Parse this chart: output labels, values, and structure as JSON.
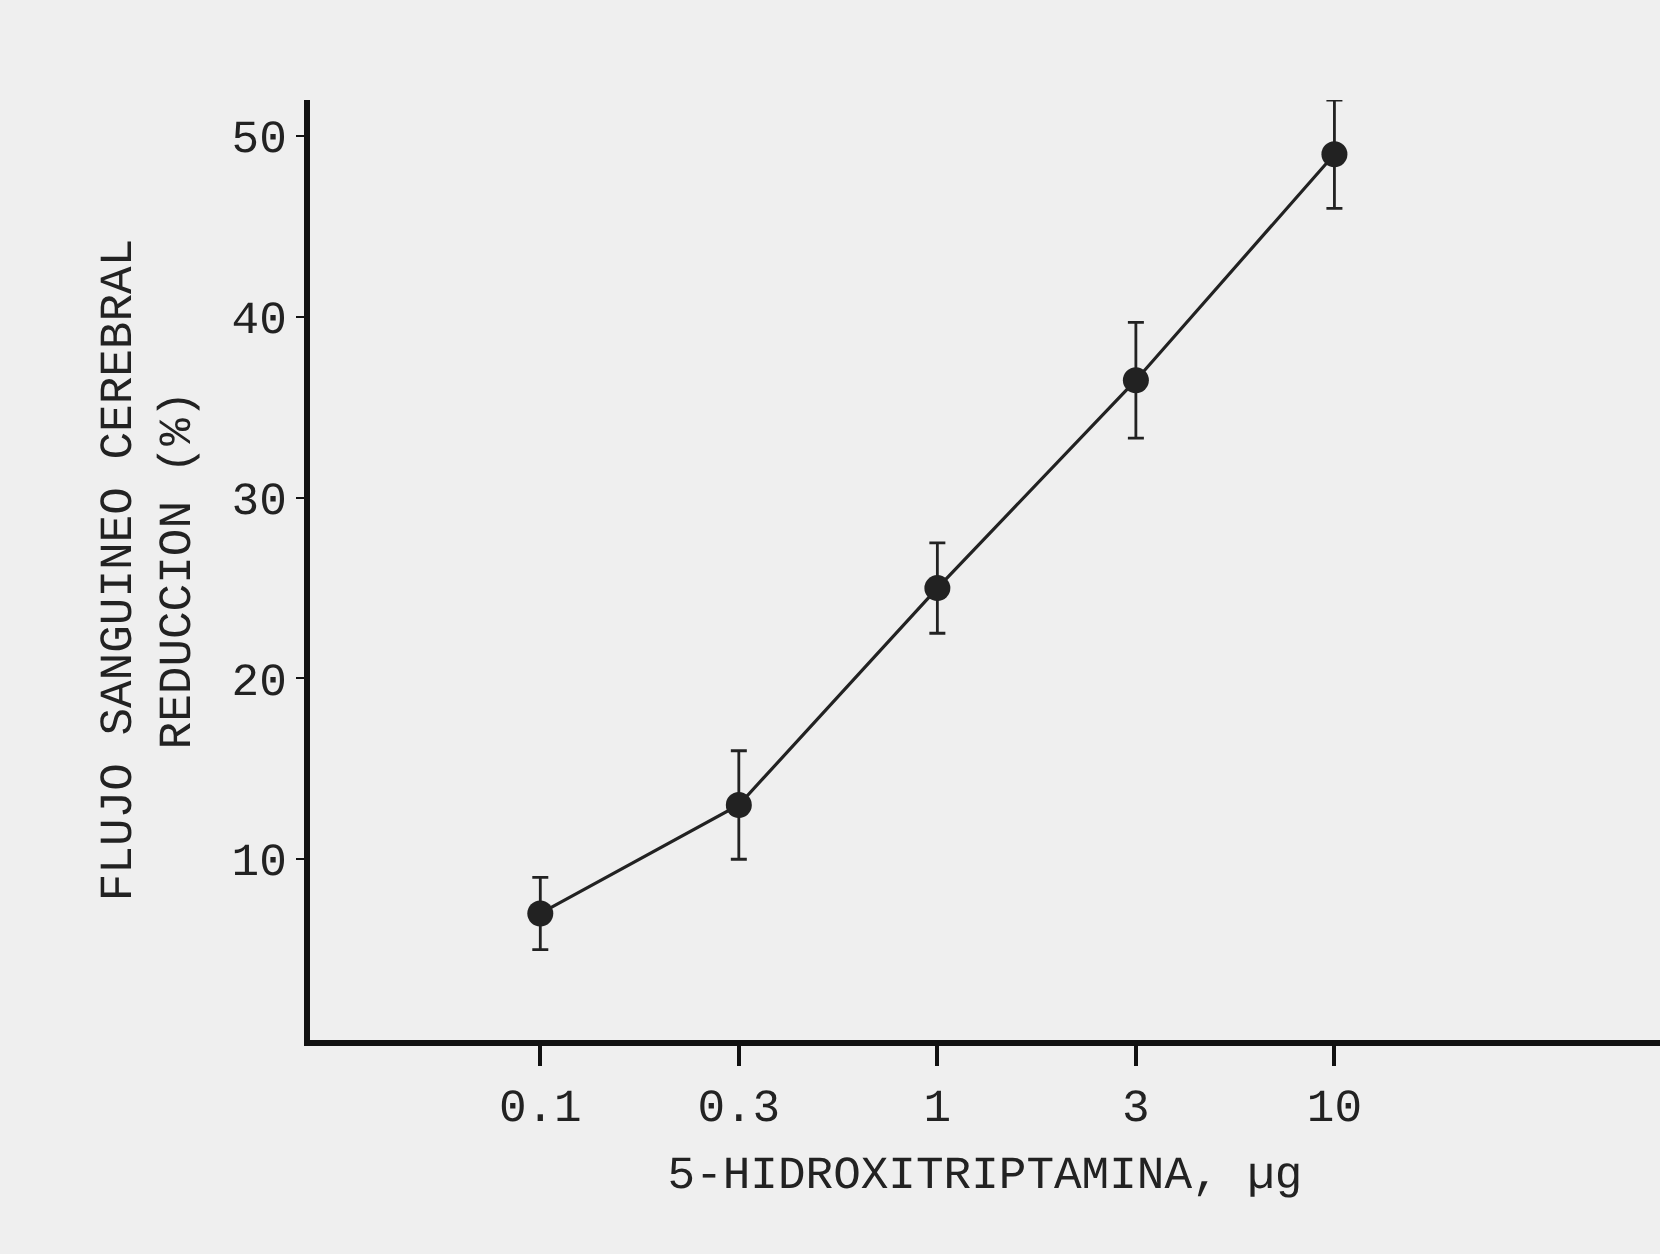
{
  "chart_data": {
    "type": "line",
    "xlabel": "5-HIDROXITRIPTAMINA, µg",
    "ylabel": "FLUJO SANGUINEO CEREBRAL\nREDUCCION (%)",
    "categories": [
      "0.1",
      "0.3",
      "1",
      "3",
      "10"
    ],
    "series": [
      {
        "color": "#222222",
        "values": [
          7,
          13,
          25,
          36.5,
          49
        ],
        "errors": [
          2,
          3,
          2.5,
          3.2,
          3
        ]
      }
    ],
    "ylim": [
      0,
      52
    ],
    "yticks": [
      10,
      20,
      30,
      40,
      50
    ],
    "marker": "circle",
    "line_style": "solid"
  }
}
